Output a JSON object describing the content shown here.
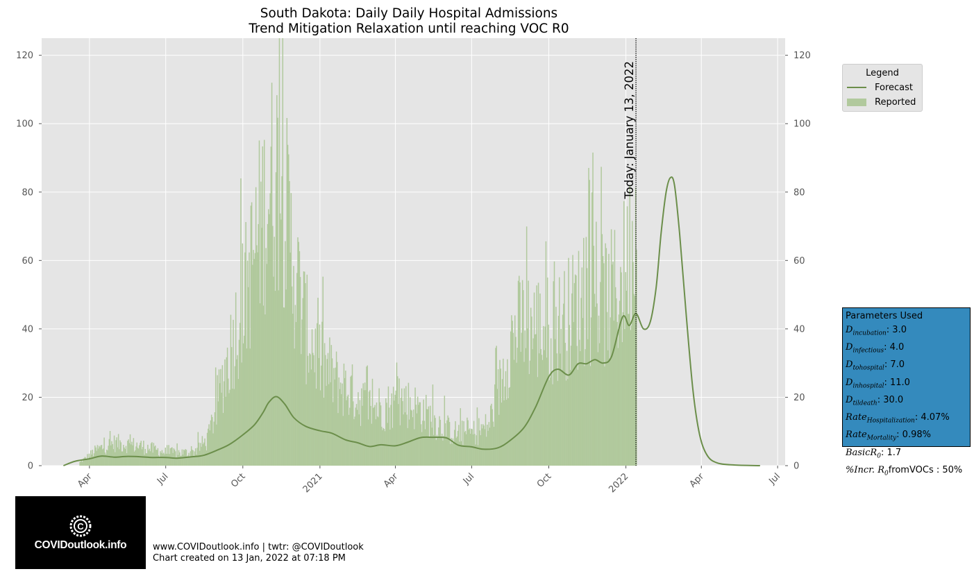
{
  "chart_data": {
    "type": "bar",
    "title_line1": "South Dakota: Daily Daily Hospital Admissions",
    "title_line2": "Trend Mitigation Relaxation until reaching VOC R0",
    "xlabel": "",
    "ylabel": "",
    "ylim": [
      0,
      125
    ],
    "yticks": [
      0,
      20,
      40,
      60,
      80,
      100,
      120
    ],
    "x_tick_labels": [
      "Apr",
      "Jul",
      "Oct",
      "2021",
      "Apr",
      "Jul",
      "Oct",
      "2022",
      "Apr",
      "Jul"
    ],
    "x_tick_dates": [
      "2020-04-01",
      "2020-07-01",
      "2020-10-01",
      "2021-01-01",
      "2021-04-01",
      "2021-07-01",
      "2021-10-01",
      "2022-01-01",
      "2022-04-01",
      "2022-07-01"
    ],
    "xlim": [
      "2020-02-04",
      "2022-07-10"
    ],
    "today_date": "2022-01-13",
    "today_label": "Today: January 13, 2022",
    "grid": true,
    "legend_position": "outside-right",
    "colors": {
      "forecast": "#6b8e4a",
      "reported": "#b1c99d",
      "background": "#e5e5e5",
      "grid": "#ffffff"
    },
    "reported_series": {
      "name": "Reported",
      "description_points": [
        {
          "date": "2020-03-20",
          "value": 1
        },
        {
          "date": "2020-04-10",
          "value": 5
        },
        {
          "date": "2020-05-01",
          "value": 7
        },
        {
          "date": "2020-06-01",
          "value": 6
        },
        {
          "date": "2020-07-01",
          "value": 4
        },
        {
          "date": "2020-08-01",
          "value": 4
        },
        {
          "date": "2020-08-20",
          "value": 8
        },
        {
          "date": "2020-09-05",
          "value": 25
        },
        {
          "date": "2020-09-20",
          "value": 40
        },
        {
          "date": "2020-10-05",
          "value": 55
        },
        {
          "date": "2020-10-20",
          "value": 72
        },
        {
          "date": "2020-11-01",
          "value": 85
        },
        {
          "date": "2020-11-10",
          "value": 90
        },
        {
          "date": "2020-11-20",
          "value": 80
        },
        {
          "date": "2020-12-01",
          "value": 60
        },
        {
          "date": "2020-12-15",
          "value": 42
        },
        {
          "date": "2021-01-01",
          "value": 32
        },
        {
          "date": "2021-01-20",
          "value": 26
        },
        {
          "date": "2021-02-10",
          "value": 22
        },
        {
          "date": "2021-03-01",
          "value": 18
        },
        {
          "date": "2021-03-20",
          "value": 18
        },
        {
          "date": "2021-04-10",
          "value": 20
        },
        {
          "date": "2021-05-01",
          "value": 17
        },
        {
          "date": "2021-05-20",
          "value": 13
        },
        {
          "date": "2021-06-10",
          "value": 10
        },
        {
          "date": "2021-07-01",
          "value": 10
        },
        {
          "date": "2021-07-20",
          "value": 12
        },
        {
          "date": "2021-08-01",
          "value": 22
        },
        {
          "date": "2021-08-15",
          "value": 38
        },
        {
          "date": "2021-09-01",
          "value": 44
        },
        {
          "date": "2021-09-20",
          "value": 42
        },
        {
          "date": "2021-10-10",
          "value": 42
        },
        {
          "date": "2021-11-01",
          "value": 48
        },
        {
          "date": "2021-11-20",
          "value": 52
        },
        {
          "date": "2021-12-10",
          "value": 50
        },
        {
          "date": "2021-12-25",
          "value": 55
        },
        {
          "date": "2022-01-05",
          "value": 65
        },
        {
          "date": "2022-01-13",
          "value": 75
        }
      ]
    },
    "forecast_series": {
      "name": "Forecast",
      "points": [
        {
          "date": "2020-03-01",
          "value": 0
        },
        {
          "date": "2020-03-15",
          "value": 1.3
        },
        {
          "date": "2020-04-01",
          "value": 2
        },
        {
          "date": "2020-04-15",
          "value": 2.8
        },
        {
          "date": "2020-05-01",
          "value": 2.5
        },
        {
          "date": "2020-05-15",
          "value": 2.7
        },
        {
          "date": "2020-06-01",
          "value": 2.6
        },
        {
          "date": "2020-06-15",
          "value": 2.4
        },
        {
          "date": "2020-07-01",
          "value": 2.4
        },
        {
          "date": "2020-07-15",
          "value": 2.2
        },
        {
          "date": "2020-08-01",
          "value": 2.6
        },
        {
          "date": "2020-08-15",
          "value": 3
        },
        {
          "date": "2020-09-01",
          "value": 4.6
        },
        {
          "date": "2020-09-15",
          "value": 6.2
        },
        {
          "date": "2020-10-01",
          "value": 9
        },
        {
          "date": "2020-10-15",
          "value": 12
        },
        {
          "date": "2020-10-25",
          "value": 15.5
        },
        {
          "date": "2020-11-01",
          "value": 18.5
        },
        {
          "date": "2020-11-10",
          "value": 20.2
        },
        {
          "date": "2020-11-20",
          "value": 18
        },
        {
          "date": "2020-12-01",
          "value": 14
        },
        {
          "date": "2020-12-15",
          "value": 11.5
        },
        {
          "date": "2021-01-01",
          "value": 10.2
        },
        {
          "date": "2021-01-15",
          "value": 9.5
        },
        {
          "date": "2021-02-01",
          "value": 7.5
        },
        {
          "date": "2021-02-15",
          "value": 6.7
        },
        {
          "date": "2021-03-01",
          "value": 5.6
        },
        {
          "date": "2021-03-15",
          "value": 6.1
        },
        {
          "date": "2021-04-01",
          "value": 5.8
        },
        {
          "date": "2021-04-15",
          "value": 6.8
        },
        {
          "date": "2021-05-01",
          "value": 8.2
        },
        {
          "date": "2021-05-15",
          "value": 8.3
        },
        {
          "date": "2021-06-01",
          "value": 8.1
        },
        {
          "date": "2021-06-15",
          "value": 6
        },
        {
          "date": "2021-07-01",
          "value": 5.5
        },
        {
          "date": "2021-07-15",
          "value": 4.8
        },
        {
          "date": "2021-08-01",
          "value": 5.2
        },
        {
          "date": "2021-08-15",
          "value": 7.2
        },
        {
          "date": "2021-09-01",
          "value": 11
        },
        {
          "date": "2021-09-15",
          "value": 17
        },
        {
          "date": "2021-10-01",
          "value": 26
        },
        {
          "date": "2021-10-12",
          "value": 28.2
        },
        {
          "date": "2021-10-25",
          "value": 26.5
        },
        {
          "date": "2021-11-05",
          "value": 29.8
        },
        {
          "date": "2021-11-15",
          "value": 29.8
        },
        {
          "date": "2021-11-25",
          "value": 31
        },
        {
          "date": "2021-12-05",
          "value": 30
        },
        {
          "date": "2021-12-15",
          "value": 32
        },
        {
          "date": "2021-12-28",
          "value": 43.5
        },
        {
          "date": "2022-01-05",
          "value": 41
        },
        {
          "date": "2022-01-13",
          "value": 44.5
        },
        {
          "date": "2022-01-22",
          "value": 40
        },
        {
          "date": "2022-01-30",
          "value": 42
        },
        {
          "date": "2022-02-06",
          "value": 52
        },
        {
          "date": "2022-02-12",
          "value": 68
        },
        {
          "date": "2022-02-18",
          "value": 80
        },
        {
          "date": "2022-02-23",
          "value": 84.2
        },
        {
          "date": "2022-02-28",
          "value": 82
        },
        {
          "date": "2022-03-06",
          "value": 68
        },
        {
          "date": "2022-03-14",
          "value": 44
        },
        {
          "date": "2022-03-22",
          "value": 22
        },
        {
          "date": "2022-03-30",
          "value": 9
        },
        {
          "date": "2022-04-08",
          "value": 3
        },
        {
          "date": "2022-04-20",
          "value": 0.8
        },
        {
          "date": "2022-05-10",
          "value": 0.2
        },
        {
          "date": "2022-06-10",
          "value": 0
        }
      ]
    }
  },
  "legend": {
    "title": "Legend",
    "items": [
      "Forecast",
      "Reported"
    ]
  },
  "parameters": {
    "title": "Parameters Used",
    "rows": [
      {
        "sym": "D",
        "sub": "incubation",
        "value": ": 3.0"
      },
      {
        "sym": "D",
        "sub": "infectious",
        "value": ": 4.0"
      },
      {
        "sym": "D",
        "sub": "tohospital",
        "value": ": 7.0"
      },
      {
        "sym": "D",
        "sub": "inhospital",
        "value": ": 11.0"
      },
      {
        "sym": "D",
        "sub": "tildeath",
        "value": ": 30.0"
      },
      {
        "sym": "Rate",
        "sub": "Hospitalization",
        "value": ": 4.07%"
      },
      {
        "sym": "Rate",
        "sub": "Mortality",
        "value": ": 0.98%"
      },
      {
        "sym": "BasicR",
        "sub": "0",
        "value": ": 1.7"
      },
      {
        "sym": "%Incr. R",
        "sub": "0",
        "value": "fromVOCs : 50%"
      }
    ]
  },
  "logo": {
    "text": "COVIDoutlook.info",
    "icon": "covid-logo-icon"
  },
  "credits": {
    "line1": "www.COVIDoutlook.info | twtr: @COVIDoutlook",
    "line2": "Chart created on 13 Jan, 2022 at 07:18 PM"
  }
}
